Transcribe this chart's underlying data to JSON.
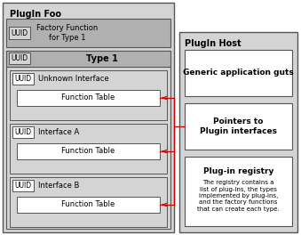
{
  "bg_color": "#ffffff",
  "white": "#ffffff",
  "light_gray": "#d4d4d4",
  "dark_gray": "#b0b0b0",
  "arrow_color": "#cc0000",
  "text_dark": "#000000",
  "border_color": "#555555",
  "plugin_foo_label": "PlugIn Foo",
  "plugin_host_label": "PlugIn Host",
  "factory_uuid_label": "UUID",
  "factory_func_label": "Factory Function\nfor Type 1",
  "type1_uuid_label": "UUID",
  "type1_label": "Type 1",
  "ifaces": [
    {
      "uuid": "UUID",
      "name": "Unknown Interface",
      "ft": "Function Table"
    },
    {
      "uuid": "UUID",
      "name": "Interface A",
      "ft": "Function Table"
    },
    {
      "uuid": "UUID",
      "name": "Interface B",
      "ft": "Function Table"
    }
  ],
  "host_box1_label": "Generic application guts",
  "host_box2_label": "Pointers to\nPlugin interfaces",
  "host_box3_label": "Plug-in registry",
  "host_box3_sub": "The registry contains a\nlist of plug-ins, the types\nimplemented by plug-ins,\nand the factory functions\nthat can create each type."
}
